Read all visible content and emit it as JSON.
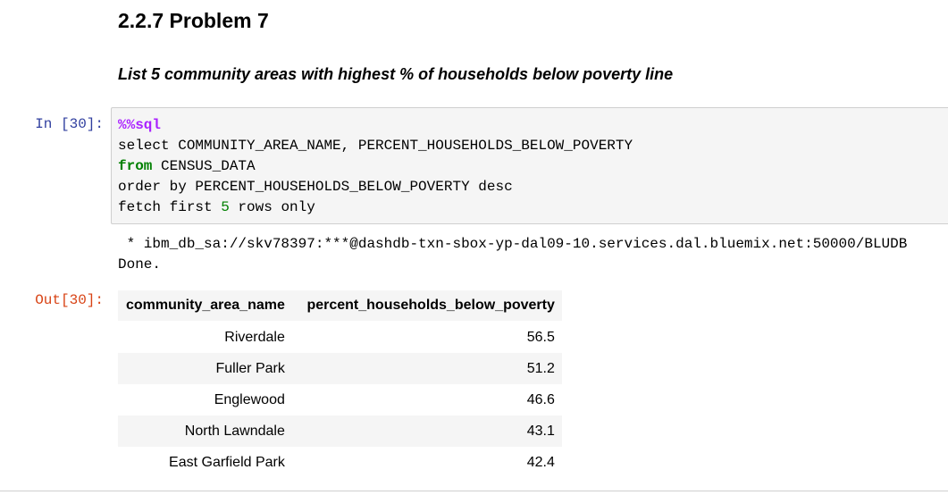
{
  "markdown": {
    "heading": "2.2.7 Problem 7",
    "subheading": "List 5 community areas with highest % of households below poverty line"
  },
  "cell_in": {
    "prompt": "In [30]:",
    "magic": "%%sql",
    "line2": "select COMMUNITY_AREA_NAME, PERCENT_HOUSEHOLDS_BELOW_POVERTY",
    "line3_kw": "from",
    "line3_rest": " CENSUS_DATA",
    "line4": "order by PERCENT_HOUSEHOLDS_BELOW_POVERTY desc",
    "line5_a": "fetch first ",
    "line5_num": "5",
    "line5_b": " rows only"
  },
  "stdout": {
    "connection": " * ibm_db_sa://skv78397:***@dashdb-txn-sbox-yp-dal09-10.services.dal.bluemix.net:50000/BLUDB",
    "done": "Done."
  },
  "cell_out": {
    "prompt": "Out[30]:",
    "columns": [
      "community_area_name",
      "percent_households_below_poverty"
    ],
    "rows": [
      [
        "Riverdale",
        "56.5"
      ],
      [
        "Fuller Park",
        "51.2"
      ],
      [
        "Englewood",
        "46.6"
      ],
      [
        "North Lawndale",
        "43.1"
      ],
      [
        "East Garfield Park",
        "42.4"
      ]
    ]
  }
}
